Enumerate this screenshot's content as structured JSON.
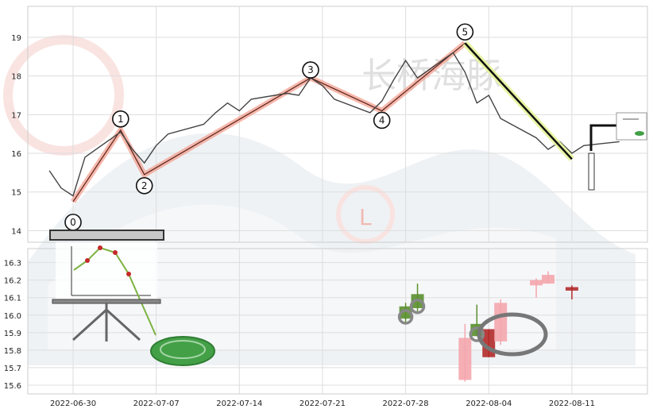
{
  "chart_data": [
    {
      "type": "line",
      "panel": "top",
      "ylim": [
        13.7,
        19.8
      ],
      "y_ticks": [
        14,
        15,
        16,
        17,
        18,
        19
      ],
      "grid": true,
      "price_series": [
        [
          "2022-06-28",
          15.55
        ],
        [
          "2022-06-29",
          15.1
        ],
        [
          "2022-06-30",
          14.9
        ],
        [
          "2022-07-01",
          15.9
        ],
        [
          "2022-07-04",
          16.55
        ],
        [
          "2022-07-05",
          16.1
        ],
        [
          "2022-07-06",
          15.75
        ],
        [
          "2022-07-07",
          16.2
        ],
        [
          "2022-07-08",
          16.5
        ],
        [
          "2022-07-11",
          16.75
        ],
        [
          "2022-07-12",
          17.05
        ],
        [
          "2022-07-13",
          17.3
        ],
        [
          "2022-07-14",
          17.1
        ],
        [
          "2022-07-15",
          17.4
        ],
        [
          "2022-07-18",
          17.55
        ],
        [
          "2022-07-19",
          17.5
        ],
        [
          "2022-07-20",
          17.95
        ],
        [
          "2022-07-21",
          17.75
        ],
        [
          "2022-07-22",
          17.4
        ],
        [
          "2022-07-25",
          17.05
        ],
        [
          "2022-07-26",
          17.35
        ],
        [
          "2022-07-27",
          17.9
        ],
        [
          "2022-07-28",
          18.4
        ],
        [
          "2022-07-29",
          17.95
        ],
        [
          "2022-08-01",
          18.6
        ],
        [
          "2022-08-02",
          18.1
        ],
        [
          "2022-08-03",
          17.3
        ],
        [
          "2022-08-04",
          17.5
        ],
        [
          "2022-08-05",
          16.9
        ],
        [
          "2022-08-08",
          16.4
        ],
        [
          "2022-08-09",
          16.1
        ],
        [
          "2022-08-10",
          16.3
        ],
        [
          "2022-08-11",
          16.0
        ],
        [
          "2022-08-12",
          16.2
        ],
        [
          "2022-08-15",
          16.3
        ]
      ],
      "wave_points": [
        {
          "label": "0",
          "date": "2022-06-30",
          "value": 14.75
        },
        {
          "label": "1",
          "date": "2022-07-04",
          "value": 16.6
        },
        {
          "label": "2",
          "date": "2022-07-06",
          "value": 15.45
        },
        {
          "label": "3",
          "date": "2022-07-20",
          "value": 17.95
        },
        {
          "label": "4",
          "date": "2022-07-26",
          "value": 17.1
        },
        {
          "label": "5",
          "date": "2022-08-02",
          "value": 18.85
        }
      ],
      "trend_line": {
        "from": [
          "2022-08-02",
          18.85
        ],
        "to": [
          "2022-08-11",
          15.85
        ]
      }
    },
    {
      "type": "candlestick",
      "panel": "bottom",
      "ylim": [
        15.55,
        16.38
      ],
      "y_ticks": [
        "15.6",
        "15.7",
        "15.8",
        "15.9",
        "16.0",
        "16.1",
        "16.2",
        "16.3"
      ],
      "grid": true,
      "candles": [
        {
          "date": "2022-07-28",
          "open": 15.98,
          "close": 16.05,
          "high": 16.07,
          "low": 15.95
        },
        {
          "date": "2022-07-29",
          "open": 16.04,
          "close": 16.12,
          "high": 16.18,
          "low": 16.02
        },
        {
          "date": "2022-08-02",
          "open": 15.63,
          "close": 15.87,
          "high": 15.95,
          "low": 15.62
        },
        {
          "date": "2022-08-03",
          "open": 15.88,
          "close": 15.95,
          "high": 16.06,
          "low": 15.88
        },
        {
          "date": "2022-08-04",
          "open": 15.92,
          "close": 15.76,
          "high": 15.92,
          "low": 15.76
        },
        {
          "date": "2022-08-05",
          "open": 15.85,
          "close": 16.07,
          "high": 16.09,
          "low": 15.83
        },
        {
          "date": "2022-08-08",
          "open": 16.17,
          "close": 16.2,
          "high": 16.21,
          "low": 16.1
        },
        {
          "date": "2022-08-09",
          "open": 16.18,
          "close": 16.23,
          "high": 16.25,
          "low": 16.18
        },
        {
          "date": "2022-08-11",
          "open": 16.16,
          "close": 16.14,
          "high": 16.17,
          "low": 16.09
        }
      ],
      "circle_markers": [
        {
          "date": "2022-07-28",
          "value": 15.99
        },
        {
          "date": "2022-07-29",
          "value": 16.05
        },
        {
          "date": "2022-08-03",
          "value": 15.89
        }
      ]
    }
  ],
  "x_axis": {
    "tick_labels": [
      "2022-06-30",
      "2022-07-07",
      "2022-07-14",
      "2022-07-21",
      "2022-07-28",
      "2022-08-04",
      "2022-08-11"
    ]
  },
  "watermark_text": "长桥海豚",
  "watermark_badge": "L"
}
